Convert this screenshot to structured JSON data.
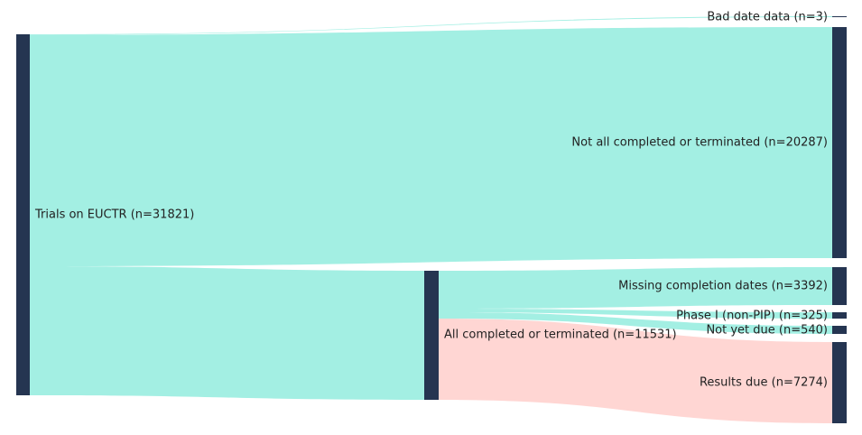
{
  "chart_data": {
    "type": "sankey",
    "node_color": "#253551",
    "nodes": [
      {
        "id": "euctr",
        "label": "Trials on EUCTR (n=31821)",
        "value": 31821
      },
      {
        "id": "not_all",
        "label": "Not all completed or terminated (n=20287)",
        "value": 20287
      },
      {
        "id": "bad_date",
        "label": "Bad date data (n=3)",
        "value": 3
      },
      {
        "id": "all_completed",
        "label": "All completed or terminated (n=11531)",
        "value": 11531
      },
      {
        "id": "missing",
        "label": "Missing completion dates (n=3392)",
        "value": 3392
      },
      {
        "id": "phase1",
        "label": "Phase I (non-PIP) (n=325)",
        "value": 325
      },
      {
        "id": "not_due",
        "label": "Not yet due (n=540)",
        "value": 540
      },
      {
        "id": "due",
        "label": "Results due (n=7274)",
        "value": 7274
      }
    ],
    "links": [
      {
        "source": "euctr",
        "target": "bad_date",
        "value": 3,
        "color": "#a3efe3"
      },
      {
        "source": "euctr",
        "target": "not_all",
        "value": 20287,
        "color": "#a3efe3"
      },
      {
        "source": "euctr",
        "target": "all_completed",
        "value": 11531,
        "color": "#a3efe3"
      },
      {
        "source": "all_completed",
        "target": "missing",
        "value": 3392,
        "color": "#a3efe3"
      },
      {
        "source": "all_completed",
        "target": "phase1",
        "value": 325,
        "color": "#a3efe3"
      },
      {
        "source": "all_completed",
        "target": "not_due",
        "value": 540,
        "color": "#a3efe3"
      },
      {
        "source": "all_completed",
        "target": "due",
        "value": 7274,
        "color": "#ffd6d3"
      }
    ]
  }
}
